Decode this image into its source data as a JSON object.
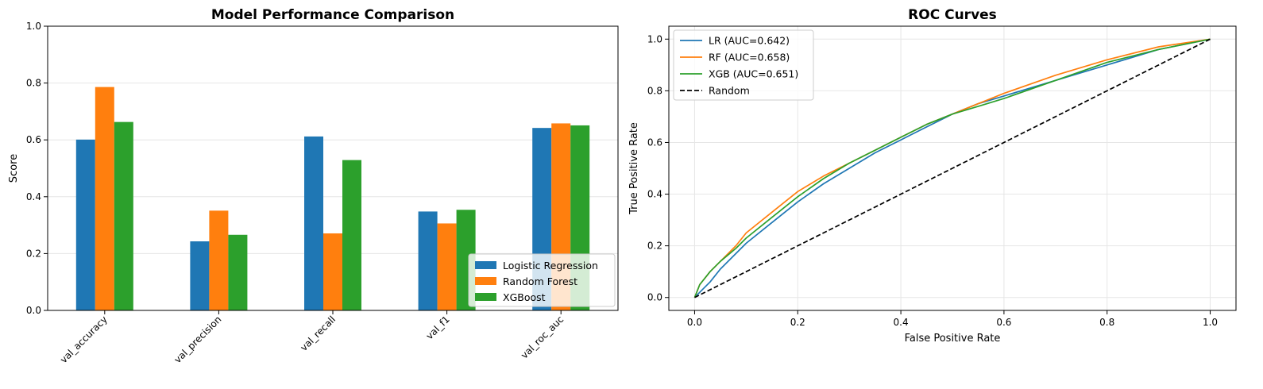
{
  "chart_data": [
    {
      "type": "bar",
      "title": "Model Performance Comparison",
      "xlabel": "",
      "ylabel": "Score",
      "ylim": [
        0,
        1
      ],
      "yticks": [
        "0.0",
        "0.2",
        "0.4",
        "0.6",
        "0.8",
        "1.0"
      ],
      "grid": "y",
      "legend_position": "lower right",
      "categories": [
        "val_accuracy",
        "val_precision",
        "val_recall",
        "val_f1",
        "val_roc_auc"
      ],
      "series": [
        {
          "name": "Logistic Regression",
          "color": "#1f77b4",
          "values": [
            0.601,
            0.243,
            0.612,
            0.348,
            0.642
          ]
        },
        {
          "name": "Random Forest",
          "color": "#ff7f0e",
          "values": [
            0.786,
            0.351,
            0.271,
            0.306,
            0.658
          ]
        },
        {
          "name": "XGBoost",
          "color": "#2ca02c",
          "values": [
            0.663,
            0.266,
            0.529,
            0.354,
            0.651
          ]
        }
      ]
    },
    {
      "type": "line",
      "title": "ROC Curves",
      "xlabel": "False Positive Rate",
      "ylabel": "True Positive Rate",
      "xlim": [
        -0.05,
        1.05
      ],
      "ylim": [
        -0.05,
        1.05
      ],
      "xticks": [
        "0.0",
        "0.2",
        "0.4",
        "0.6",
        "0.8",
        "1.0"
      ],
      "yticks": [
        "0.0",
        "0.2",
        "0.4",
        "0.6",
        "0.8",
        "1.0"
      ],
      "grid": "both",
      "legend_position": "upper left",
      "series": [
        {
          "name": "LR (AUC=0.642)",
          "color": "#1f77b4",
          "dashed": false,
          "x": [
            0,
            0.01,
            0.03,
            0.05,
            0.08,
            0.1,
            0.15,
            0.2,
            0.25,
            0.3,
            0.35,
            0.4,
            0.45,
            0.5,
            0.55,
            0.6,
            0.7,
            0.8,
            0.9,
            1.0
          ],
          "y": [
            0,
            0.02,
            0.06,
            0.11,
            0.17,
            0.21,
            0.29,
            0.37,
            0.44,
            0.5,
            0.56,
            0.61,
            0.66,
            0.71,
            0.75,
            0.78,
            0.84,
            0.9,
            0.96,
            1.0
          ]
        },
        {
          "name": "RF (AUC=0.658)",
          "color": "#ff7f0e",
          "dashed": false,
          "x": [
            0,
            0.01,
            0.03,
            0.05,
            0.08,
            0.1,
            0.15,
            0.2,
            0.25,
            0.3,
            0.35,
            0.4,
            0.45,
            0.5,
            0.55,
            0.6,
            0.7,
            0.8,
            0.9,
            1.0
          ],
          "y": [
            0,
            0.05,
            0.1,
            0.14,
            0.2,
            0.25,
            0.33,
            0.41,
            0.47,
            0.52,
            0.57,
            0.62,
            0.67,
            0.71,
            0.75,
            0.79,
            0.86,
            0.92,
            0.97,
            1.0
          ]
        },
        {
          "name": "XGB (AUC=0.651)",
          "color": "#2ca02c",
          "dashed": false,
          "x": [
            0,
            0.01,
            0.03,
            0.05,
            0.08,
            0.1,
            0.15,
            0.2,
            0.25,
            0.3,
            0.35,
            0.4,
            0.45,
            0.5,
            0.55,
            0.6,
            0.7,
            0.8,
            0.9,
            1.0
          ],
          "y": [
            0,
            0.05,
            0.1,
            0.14,
            0.19,
            0.23,
            0.31,
            0.39,
            0.46,
            0.52,
            0.57,
            0.62,
            0.67,
            0.71,
            0.74,
            0.77,
            0.84,
            0.91,
            0.96,
            1.0
          ]
        },
        {
          "name": "Random",
          "color": "#000000",
          "dashed": true,
          "x": [
            0,
            1
          ],
          "y": [
            0,
            1
          ]
        }
      ]
    }
  ]
}
